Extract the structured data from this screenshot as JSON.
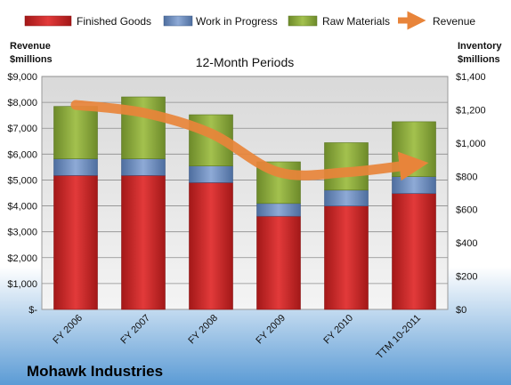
{
  "chart_data": {
    "type": "bar",
    "stacked": true,
    "subtitle": "12-Month Periods",
    "company": "Mohawk Industries",
    "y_left_label_line1": "Revenue",
    "y_left_label_line2": "$millions",
    "y_right_label_line1": "Inventory",
    "y_right_label_line2": "$millions",
    "categories": [
      "FY 2006",
      "FY 2007",
      "FY 2008",
      "FY 2009",
      "FY 2010",
      "TTM 10-2011"
    ],
    "ylim_left": [
      0,
      9000
    ],
    "ylim_right": [
      0,
      1400
    ],
    "left_ticks": [
      "$-",
      "$1,000",
      "$2,000",
      "$3,000",
      "$4,000",
      "$5,000",
      "$6,000",
      "$7,000",
      "$8,000",
      "$9,000"
    ],
    "right_ticks": [
      "$0",
      "$200",
      "$400",
      "$600",
      "$800",
      "$1,000",
      "$1,200",
      "$1,400"
    ],
    "legend_position": "top",
    "grid": true,
    "series": [
      {
        "name": "Finished Goods",
        "axis": "right",
        "color": "#d42a2a",
        "values": [
          805,
          805,
          762,
          560,
          622,
          697
        ]
      },
      {
        "name": "Work in Progress",
        "axis": "right",
        "color": "#6f90c4",
        "values": [
          100,
          100,
          100,
          77,
          95,
          101
        ]
      },
      {
        "name": "Raw Materials",
        "axis": "right",
        "color": "#8fae3e",
        "values": [
          315,
          372,
          308,
          250,
          285,
          330
        ]
      },
      {
        "name": "Revenue",
        "axis": "left",
        "type": "line",
        "color": "#e8843a",
        "values": [
          7900,
          7600,
          6800,
          5300,
          5300,
          5600
        ]
      }
    ]
  }
}
